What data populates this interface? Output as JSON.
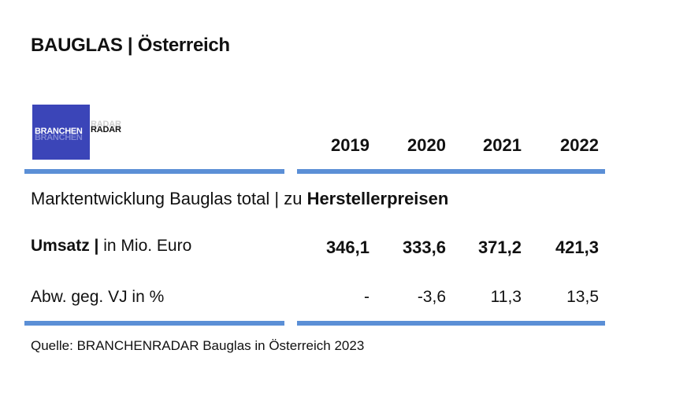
{
  "title": "BAUGLAS | Österreich",
  "logo": {
    "part1": "BRANCHEN",
    "part2": "RADAR"
  },
  "table": {
    "years": [
      "2019",
      "2020",
      "2021",
      "2022"
    ],
    "subtitle_normal": "Marktentwicklung Bauglas total | zu ",
    "subtitle_bold": "Herstellerpreisen",
    "rows": [
      {
        "label_bold": "Umsatz |",
        "label_normal": " in Mio. Euro",
        "values": [
          "346,1",
          "333,6",
          "371,2",
          "421,3"
        ]
      },
      {
        "label": "Abw. geg. VJ in %",
        "values": [
          "-",
          "-3,6",
          "11,3",
          "13,5"
        ]
      }
    ],
    "accent_color": "#5b8fd6"
  },
  "source": "Quelle: BRANCHENRADAR Bauglas in Österreich 2023"
}
